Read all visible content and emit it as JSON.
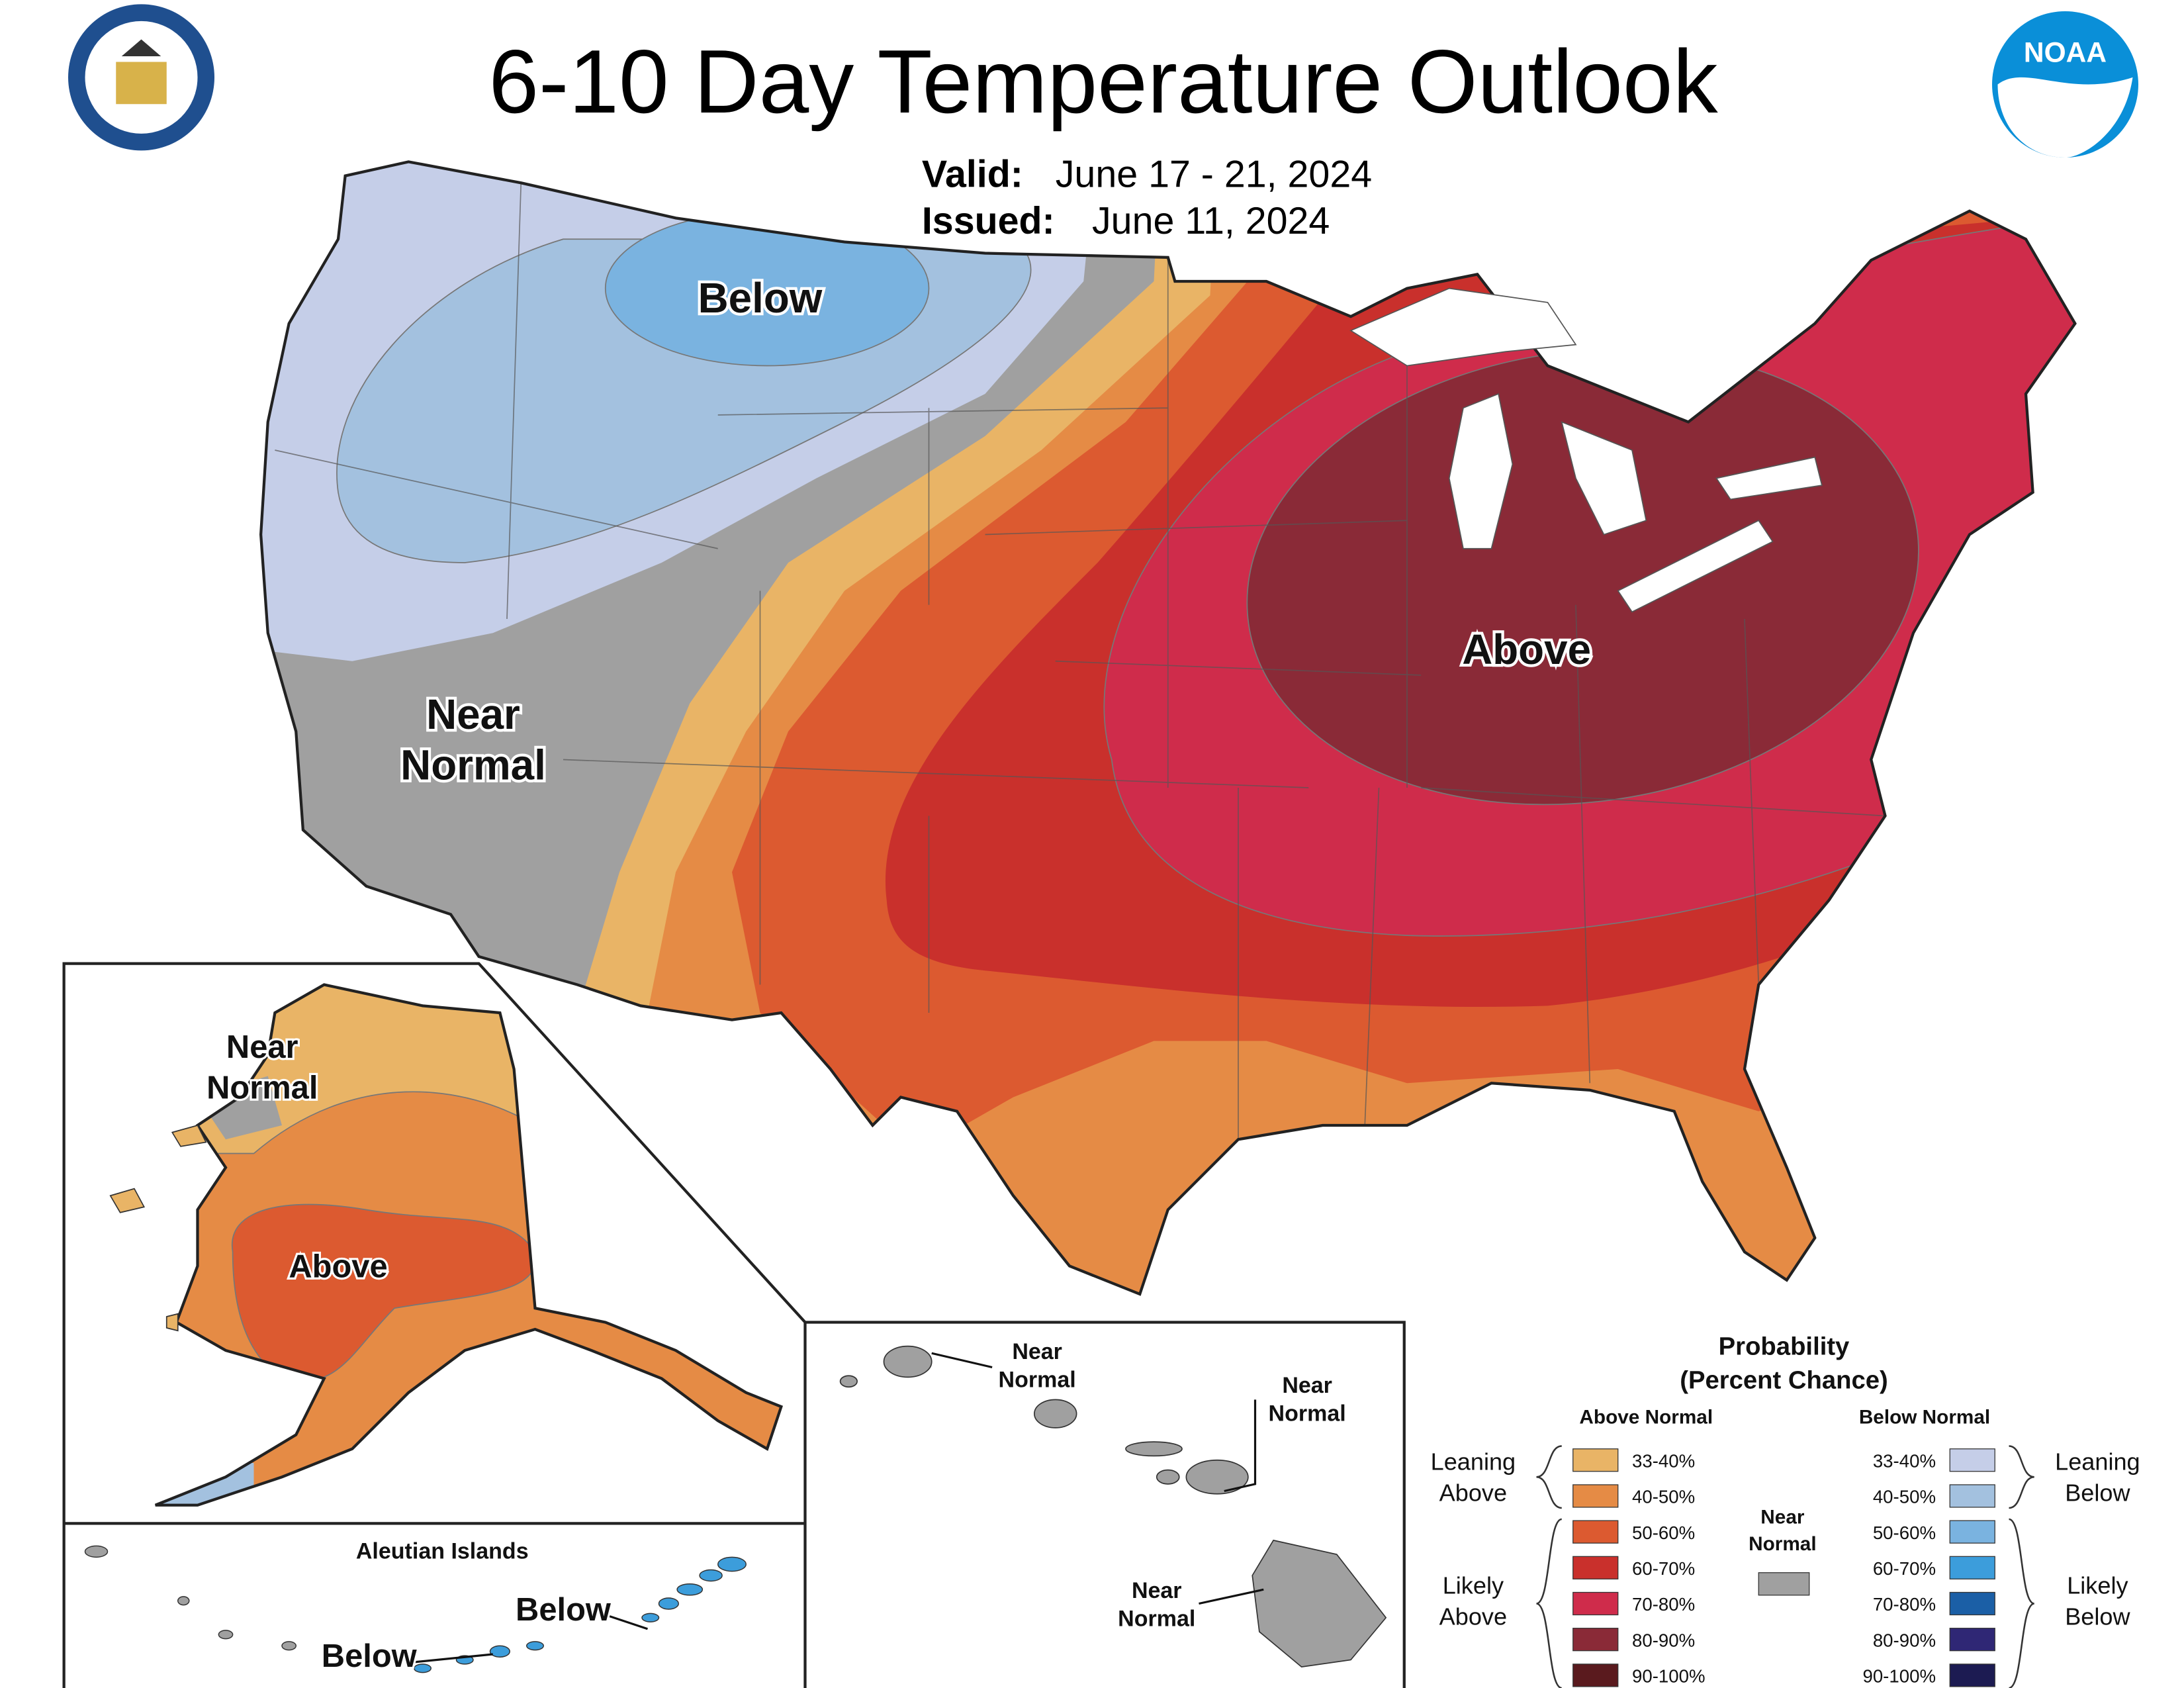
{
  "header": {
    "title": "6-10 Day Temperature Outlook",
    "valid_label": "Valid:",
    "valid_date": "June 17 - 21, 2024",
    "issued_label": "Issued:",
    "issued_date": "June 11, 2024"
  },
  "logos": {
    "noaa": "NOAA"
  },
  "conus": {
    "below": "Below",
    "near_normal": [
      "Near",
      "Normal"
    ],
    "above": "Above"
  },
  "alaska": {
    "near_normal": [
      "Near",
      "Normal"
    ],
    "above": "Above"
  },
  "aleutians": {
    "title": "Aleutian Islands",
    "below_east": "Below",
    "below_west": "Below"
  },
  "hawaii": {
    "kauai": [
      "Near",
      "Normal"
    ],
    "maui": [
      "Near",
      "Normal"
    ],
    "big_island": [
      "Near",
      "Normal"
    ]
  },
  "legend": {
    "title": [
      "Probability",
      "(Percent Chance)"
    ],
    "above_heading": "Above Normal",
    "below_heading": "Below Normal",
    "near": {
      "lines": [
        "Near",
        "Normal"
      ],
      "color": "#a0a0a0"
    },
    "leaning_above": [
      "Leaning",
      "Above"
    ],
    "likely_above": [
      "Likely",
      "Above"
    ],
    "leaning_below": [
      "Leaning",
      "Below"
    ],
    "likely_below": [
      "Likely",
      "Below"
    ],
    "above": [
      {
        "label": "33-40%",
        "color": "#e9b466"
      },
      {
        "label": "40-50%",
        "color": "#e58b45"
      },
      {
        "label": "50-60%",
        "color": "#dc5a30"
      },
      {
        "label": "60-70%",
        "color": "#c9302c"
      },
      {
        "label": "70-80%",
        "color": "#cf2c4b"
      },
      {
        "label": "80-90%",
        "color": "#8a2a37"
      },
      {
        "label": "90-100%",
        "color": "#5a1a1e"
      }
    ],
    "below": [
      {
        "label": "33-40%",
        "color": "#c5cee8"
      },
      {
        "label": "40-50%",
        "color": "#a3c1df"
      },
      {
        "label": "50-60%",
        "color": "#7ab3e0"
      },
      {
        "label": "60-70%",
        "color": "#3c9ddb"
      },
      {
        "label": "70-80%",
        "color": "#1b5fa6"
      },
      {
        "label": "80-90%",
        "color": "#2f2775"
      },
      {
        "label": "90-100%",
        "color": "#1c1b52"
      }
    ]
  }
}
